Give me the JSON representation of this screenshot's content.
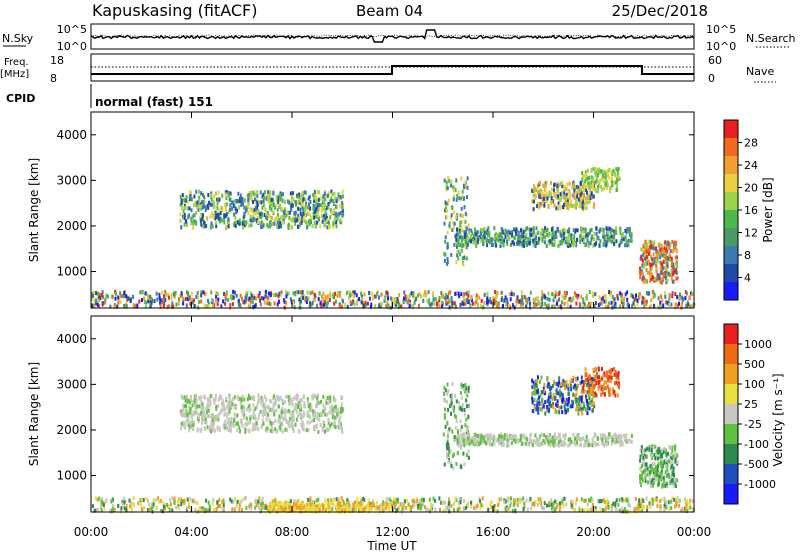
{
  "header": {
    "station": "Kapuskasing (fitACF)",
    "beam": "Beam 04",
    "date": "25/Dec/2018"
  },
  "noise_panel": {
    "left_label": "N.Sky",
    "right_label": "N.Search",
    "left_ticks": [
      "10^5",
      "10^0"
    ],
    "right_ticks": [
      "10^5",
      "10^0"
    ]
  },
  "freq_panel": {
    "left_label_1": "Freq.",
    "left_label_2": "[MHz]",
    "right_label": "Nave",
    "left_ticks": [
      "18",
      "8"
    ],
    "right_ticks": [
      "60",
      "0"
    ]
  },
  "cpid": {
    "label": "CPID",
    "mode": "normal (fast) 151"
  },
  "chart_data": [
    {
      "type": "heatmap",
      "name": "power",
      "ylabel": "Slant Range [km]",
      "yticks": [
        "4000",
        "3000",
        "2000",
        "1000"
      ],
      "colorbar_label": "Power [dB]",
      "colorbar_ticks": [
        "28",
        "24",
        "20",
        "16",
        "12",
        "8",
        "4"
      ],
      "colors": [
        "#1a1aff",
        "#1f4aa8",
        "#3a7ab0",
        "#4f9a64",
        "#4fb84a",
        "#9ad24a",
        "#e8d040",
        "#f2a030",
        "#f06a20",
        "#e82020"
      ]
    },
    {
      "type": "heatmap",
      "name": "velocity",
      "ylabel": "Slant Range [km]",
      "yticks": [
        "4000",
        "3000",
        "2000",
        "1000"
      ],
      "colorbar_label": "Velocity [m s⁻¹]",
      "colorbar_ticks": [
        "1000",
        "500",
        "100",
        "25",
        "-25",
        "-100",
        "-500",
        "-1000"
      ],
      "colors": [
        "#1a1aff",
        "#2050c0",
        "#2f8a50",
        "#60c040",
        "#c8c8c0",
        "#e8e040",
        "#f0a020",
        "#f06a10",
        "#e82020"
      ]
    }
  ],
  "x_axis": {
    "label": "Time UT",
    "ticks": [
      "00:00",
      "04:00",
      "08:00",
      "12:00",
      "16:00",
      "20:00",
      "00:00"
    ]
  }
}
